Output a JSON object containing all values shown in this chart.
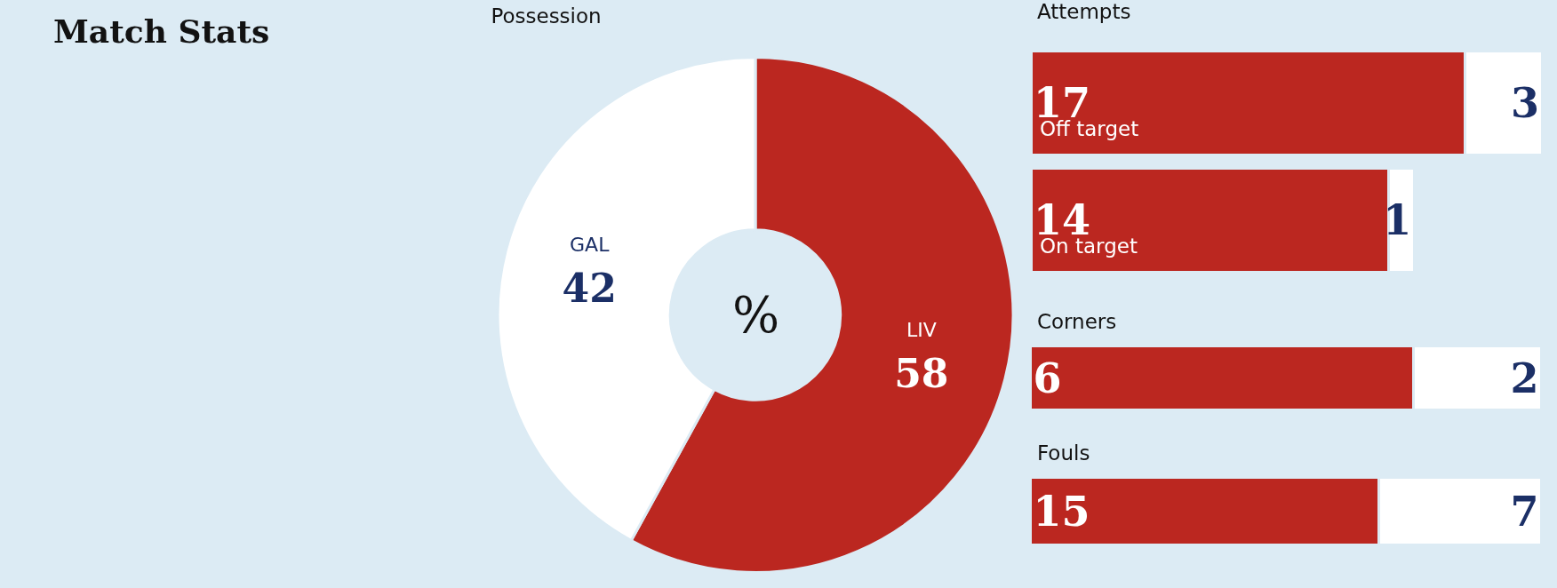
{
  "chart_data": [
    {
      "type": "other",
      "title": "Match Stats"
    },
    {
      "type": "donut",
      "title": "Possession",
      "categories": [
        "LIV",
        "GAL"
      ],
      "values": [
        58,
        42
      ],
      "colors": [
        "#bb2720",
        "#ffffff"
      ],
      "data_labels": true,
      "annotations": [
        "%"
      ],
      "legend": false
    },
    {
      "type": "bar",
      "title": "Attempts",
      "orientation": "horizontal",
      "stacked": true,
      "categories": [
        "Off target",
        "On target"
      ],
      "series": [
        {
          "color": "#bb2720",
          "values": [
            17,
            14
          ]
        },
        {
          "color": "#ffffff",
          "values": [
            3,
            1
          ]
        }
      ],
      "data_labels": true,
      "tick_labels": false,
      "grid": false,
      "legend": false
    },
    {
      "type": "bar",
      "title": "Corners",
      "orientation": "horizontal",
      "stacked": true,
      "categories": [
        null
      ],
      "series": [
        {
          "color": "#bb2720",
          "values": [
            6
          ]
        },
        {
          "color": "#ffffff",
          "values": [
            2
          ]
        }
      ],
      "data_labels": true,
      "tick_labels": false,
      "grid": false,
      "legend": false
    },
    {
      "type": "bar",
      "title": "Fouls",
      "orientation": "horizontal",
      "stacked": true,
      "categories": [
        null
      ],
      "series": [
        {
          "color": "#bb2720",
          "values": [
            15
          ]
        },
        {
          "color": "#ffffff",
          "values": [
            7
          ]
        }
      ],
      "data_labels": true,
      "tick_labels": false,
      "grid": false,
      "legend": false
    }
  ]
}
